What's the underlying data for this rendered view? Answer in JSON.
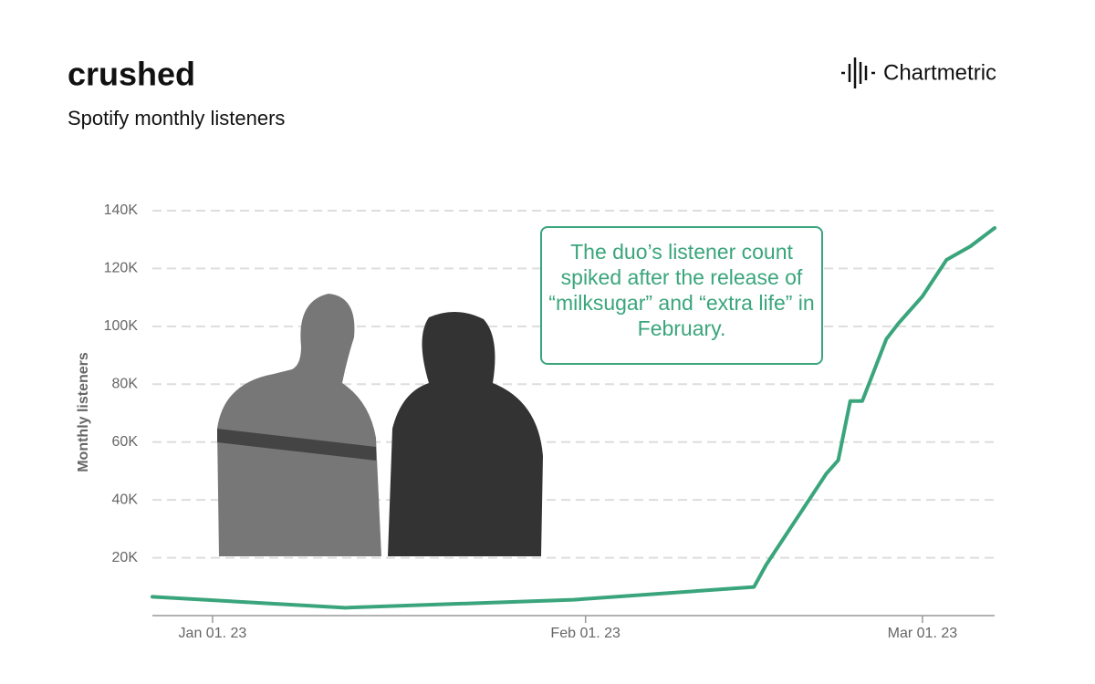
{
  "chart_data": {
    "type": "line",
    "title": "crushed",
    "subtitle": "Spotify monthly listeners",
    "brand": "Chartmetric",
    "y_label": "Monthly listeners",
    "annotation": "The duo’s listener count spiked after the release of “milksugar” and “extra life” in February.",
    "color": "#3aa57c",
    "x": [
      "2022-12-27",
      "2023-01-12",
      "2023-01-31",
      "2023-02-15",
      "2023-02-16",
      "2023-02-21",
      "2023-02-22",
      "2023-02-23",
      "2023-02-24",
      "2023-02-26",
      "2023-02-27",
      "2023-03-01",
      "2023-03-03",
      "2023-03-05",
      "2023-03-07"
    ],
    "values": [
      6500,
      2700,
      5500,
      9900,
      17500,
      49000,
      53700,
      74200,
      74200,
      95600,
      101000,
      110400,
      123000,
      127700,
      134000
    ],
    "xlim": [
      "2022-12-27",
      "2023-03-07"
    ],
    "xticks": [
      {
        "value": "2023-01-01",
        "label": "Jan 01. 23"
      },
      {
        "value": "2023-02-01",
        "label": "Feb 01. 23"
      },
      {
        "value": "2023-03-01",
        "label": "Mar 01. 23"
      }
    ],
    "ylim": [
      0,
      140000
    ],
    "yticks": [
      {
        "value": 20000,
        "label": "20K"
      },
      {
        "value": 40000,
        "label": "40K"
      },
      {
        "value": 60000,
        "label": "60K"
      },
      {
        "value": 80000,
        "label": "80K"
      },
      {
        "value": 100000,
        "label": "100K"
      },
      {
        "value": 120000,
        "label": "120K"
      },
      {
        "value": 140000,
        "label": "140K"
      }
    ],
    "grid": true
  }
}
